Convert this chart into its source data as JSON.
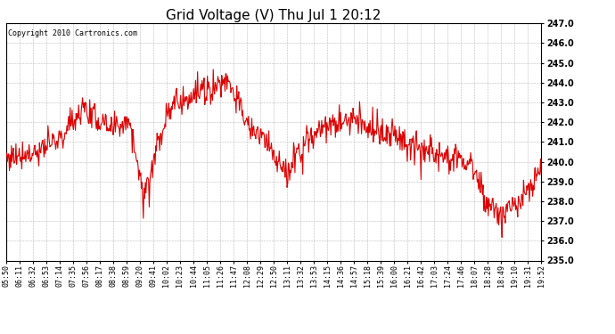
{
  "title": "Grid Voltage (V) Thu Jul 1 20:12",
  "copyright": "Copyright 2010 Cartronics.com",
  "line_color": "#dd0000",
  "bg_color": "#ffffff",
  "plot_bg_color": "#ffffff",
  "grid_color": "#bbbbbb",
  "ylim": [
    235.0,
    247.0
  ],
  "ytick_step": 1.0,
  "x_labels": [
    "05:50",
    "06:11",
    "06:32",
    "06:53",
    "07:14",
    "07:35",
    "07:56",
    "08:17",
    "08:38",
    "08:59",
    "09:20",
    "09:41",
    "10:02",
    "10:23",
    "10:44",
    "11:05",
    "11:26",
    "11:47",
    "12:08",
    "12:29",
    "12:50",
    "13:11",
    "13:32",
    "13:53",
    "14:15",
    "14:36",
    "14:57",
    "15:18",
    "15:39",
    "16:00",
    "16:21",
    "16:42",
    "17:03",
    "17:24",
    "17:46",
    "18:07",
    "18:28",
    "18:49",
    "19:10",
    "19:31",
    "19:52"
  ],
  "title_fontsize": 11,
  "copyright_fontsize": 6,
  "tick_fontsize": 6,
  "ytick_fontsize": 7,
  "line_width": 0.8,
  "figsize": [
    6.9,
    3.75
  ],
  "dpi": 100
}
